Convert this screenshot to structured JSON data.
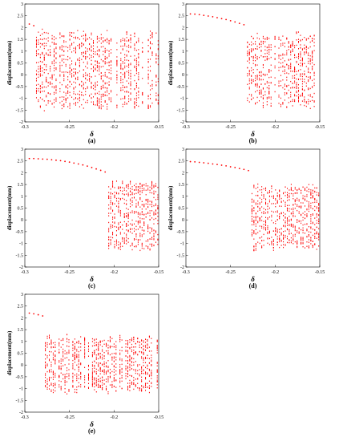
{
  "figure": {
    "panels": [
      {
        "id": "a",
        "label": "(a)",
        "xlabel": "δ",
        "ylabel": "displacement(mm)"
      },
      {
        "id": "b",
        "label": "(b)",
        "xlabel": "δ",
        "ylabel": "displacement(mm)"
      },
      {
        "id": "c",
        "label": "(c)",
        "xlabel": "δ",
        "ylabel": "displacement(mm)"
      },
      {
        "id": "d",
        "label": "(d)",
        "xlabel": "δ",
        "ylabel": "displacement(mm)"
      },
      {
        "id": "e",
        "label": "(e)",
        "xlabel": "δ",
        "ylabel": "displacement(mm)"
      }
    ],
    "x_ticks": [
      "-0.3",
      "-0.25",
      "-0.2",
      "-0.15"
    ],
    "y_ticks": [
      "3",
      "2.5",
      "2",
      "1.5",
      "1",
      "0.5",
      "0",
      "-0.5",
      "-1",
      "-1.5",
      "-2"
    ]
  },
  "chart_data": [
    {
      "panel": "a",
      "type": "scatter",
      "xlabel": "δ",
      "ylabel": "displacement(mm)",
      "xlim": [
        -0.3,
        -0.15
      ],
      "ylim": [
        -2,
        3
      ],
      "color": "#ff0000",
      "period1_branch": {
        "x": [
          -0.295,
          -0.29
        ],
        "y": [
          2.15,
          2.08
        ]
      },
      "chaotic_region": {
        "x_range": [
          -0.287,
          -0.15
        ],
        "y_range": [
          -1.55,
          1.95
        ]
      }
    },
    {
      "panel": "b",
      "type": "scatter",
      "xlabel": "δ",
      "ylabel": "displacement(mm)",
      "xlim": [
        -0.3,
        -0.15
      ],
      "ylim": [
        -2,
        3
      ],
      "color": "#ff0000",
      "period1_branch": {
        "x": [
          -0.295,
          -0.29,
          -0.285,
          -0.28,
          -0.275,
          -0.27,
          -0.265,
          -0.26,
          -0.255,
          -0.25,
          -0.245,
          -0.24,
          -0.235
        ],
        "y": [
          2.58,
          2.57,
          2.55,
          2.52,
          2.49,
          2.46,
          2.42,
          2.38,
          2.34,
          2.29,
          2.24,
          2.18,
          2.12
        ]
      },
      "chaotic_region": {
        "x_range": [
          -0.231,
          -0.15
        ],
        "y_range": [
          -1.45,
          1.85
        ]
      }
    },
    {
      "panel": "c",
      "type": "scatter",
      "xlabel": "δ",
      "ylabel": "displacement(mm)",
      "xlim": [
        -0.3,
        -0.15
      ],
      "ylim": [
        -2,
        3
      ],
      "color": "#ff0000",
      "period1_branch": {
        "x": [
          -0.295,
          -0.29,
          -0.285,
          -0.28,
          -0.275,
          -0.27,
          -0.265,
          -0.26,
          -0.255,
          -0.25,
          -0.245,
          -0.24,
          -0.235,
          -0.23,
          -0.225,
          -0.22,
          -0.215,
          -0.21
        ],
        "y": [
          2.6,
          2.6,
          2.59,
          2.58,
          2.57,
          2.55,
          2.53,
          2.51,
          2.48,
          2.45,
          2.41,
          2.37,
          2.33,
          2.28,
          2.22,
          2.16,
          2.1,
          2.03
        ]
      },
      "chaotic_region": {
        "x_range": [
          -0.206,
          -0.15
        ],
        "y_range": [
          -1.45,
          1.75
        ]
      }
    },
    {
      "panel": "d",
      "type": "scatter",
      "xlabel": "δ",
      "ylabel": "displacement(mm)",
      "xlim": [
        -0.3,
        -0.15
      ],
      "ylim": [
        -2,
        3
      ],
      "color": "#ff0000",
      "period1_branch": {
        "x": [
          -0.295,
          -0.29,
          -0.285,
          -0.28,
          -0.275,
          -0.27,
          -0.265,
          -0.26,
          -0.255,
          -0.25,
          -0.245,
          -0.24,
          -0.235,
          -0.23
        ],
        "y": [
          2.47,
          2.46,
          2.44,
          2.42,
          2.4,
          2.37,
          2.35,
          2.32,
          2.29,
          2.25,
          2.22,
          2.18,
          2.14,
          2.09
        ]
      },
      "chaotic_region": {
        "x_range": [
          -0.226,
          -0.15
        ],
        "y_range": [
          -1.35,
          1.6
        ]
      }
    },
    {
      "panel": "e",
      "type": "scatter",
      "xlabel": "δ",
      "ylabel": "displacement(mm)",
      "xlim": [
        -0.3,
        -0.15
      ],
      "ylim": [
        -2,
        3
      ],
      "color": "#ff0000",
      "period1_branch": {
        "x": [
          -0.295,
          -0.29,
          -0.285,
          -0.28
        ],
        "y": [
          2.2,
          2.17,
          2.13,
          2.08
        ]
      },
      "chaotic_region": {
        "x_range": [
          -0.277,
          -0.15
        ],
        "y_range": [
          -1.25,
          1.35
        ]
      }
    }
  ]
}
